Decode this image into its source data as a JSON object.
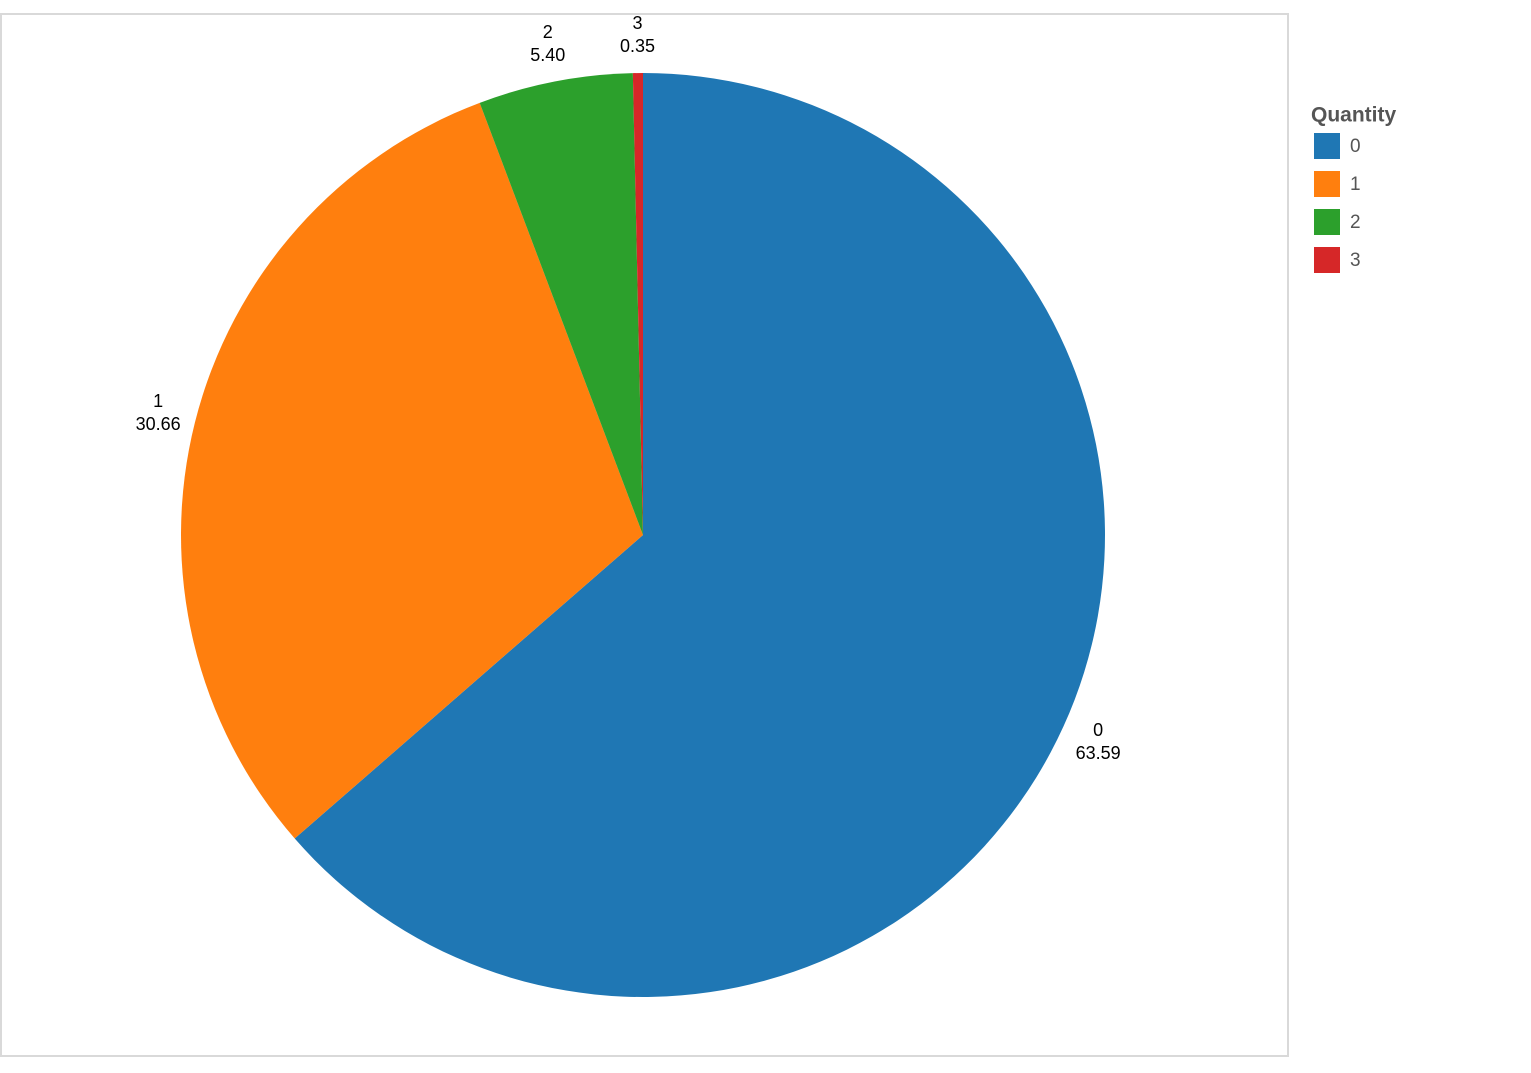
{
  "chart_data": {
    "type": "pie",
    "legend_title": "Quantity",
    "categories": [
      "0",
      "1",
      "2",
      "3"
    ],
    "values": [
      63.59,
      30.66,
      5.4,
      0.35
    ],
    "value_labels": [
      "63.59",
      "30.66",
      "5.40",
      "0.35"
    ],
    "colors": [
      "#1f77b4",
      "#ff7f0e",
      "#2ca02c",
      "#d62728"
    ],
    "legend_position": "right"
  }
}
